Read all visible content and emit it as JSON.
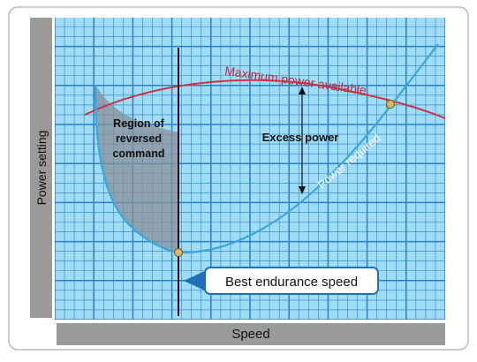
{
  "chart_data": {
    "type": "line",
    "xlabel": "Speed",
    "ylabel": "Power setting",
    "grid": true,
    "curves": [
      {
        "name": "Maximum power available",
        "color": "#cc3344"
      },
      {
        "name": "Power required",
        "color": "#3aa6dc"
      }
    ],
    "annotations": {
      "region": "Region of reversed command",
      "region_lines": [
        "Region of",
        "reversed",
        "command"
      ],
      "excess": "Excess power",
      "callout": "Best endurance speed"
    },
    "points": [
      "minimum-power point",
      "maximum-speed intersection"
    ]
  },
  "colors": {
    "grid_bg": "#9fdcf6",
    "grid_line": "#2b7fc6",
    "label_bg": "#9a9a9a",
    "callout_border": "#1f6fb6",
    "region_fill": "#8a8f98",
    "point_fill": "#e0b45a"
  }
}
